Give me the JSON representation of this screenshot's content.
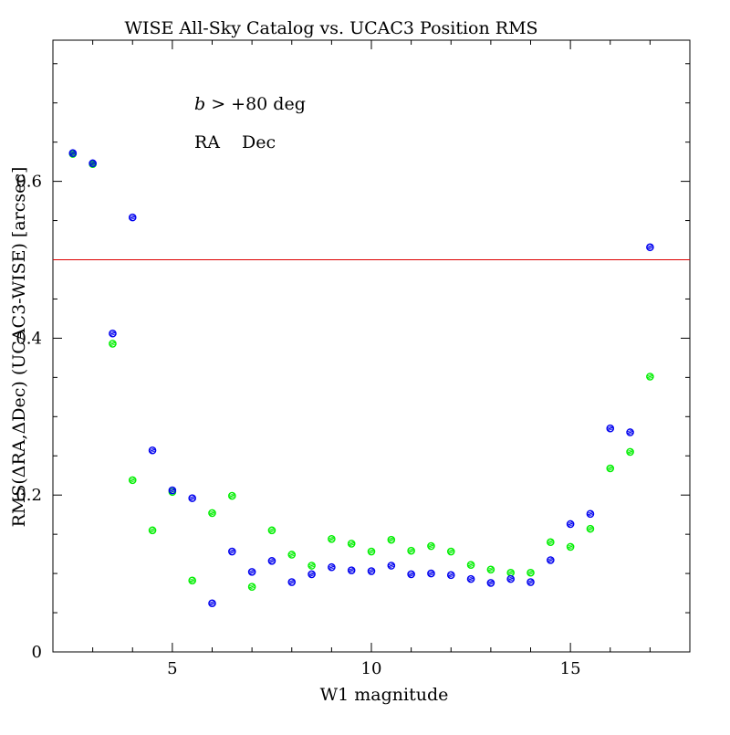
{
  "chart_data": {
    "type": "scatter",
    "title": "WISE All-Sky Catalog vs. UCAC3 Position RMS",
    "xlabel": "W1 magnitude",
    "ylabel": "RMS(ΔRA,ΔDec) (UCAC3-WISE) [arcsec]",
    "xlim": [
      2.0,
      18.0
    ],
    "ylim": [
      0.0,
      0.78
    ],
    "x_ticks": [
      5,
      10,
      15
    ],
    "x_tick_labels": [
      "5",
      "10",
      "15"
    ],
    "y_ticks": [
      0,
      0.2,
      0.4,
      0.6
    ],
    "y_tick_labels": [
      "0",
      "0.2",
      "0.4",
      "0.6"
    ],
    "grid": false,
    "annotation": {
      "italic_part": "b",
      "rest": " > +80 deg"
    },
    "legend_placement": "top-left",
    "reference_line": {
      "y": 0.5,
      "color": "#dd0000"
    },
    "series": [
      {
        "name": "RA",
        "color": "#00ee00",
        "x": [
          2.5,
          3.0,
          3.5,
          4.0,
          4.5,
          5.0,
          5.5,
          6.0,
          6.5,
          7.0,
          7.5,
          8.0,
          8.5,
          9.0,
          9.5,
          10.0,
          10.5,
          11.0,
          11.5,
          12.0,
          12.5,
          13.0,
          13.5,
          14.0,
          14.5,
          15.0,
          15.5,
          16.0,
          16.5,
          17.0
        ],
        "values": [
          0.635,
          0.622,
          0.393,
          0.219,
          0.155,
          0.204,
          0.091,
          0.177,
          0.199,
          0.083,
          0.155,
          0.124,
          0.11,
          0.144,
          0.138,
          0.128,
          0.143,
          0.129,
          0.135,
          0.128,
          0.111,
          0.105,
          0.101,
          0.101,
          0.14,
          0.134,
          0.157,
          0.234,
          0.255,
          0.351
        ]
      },
      {
        "name": "Dec",
        "color": "#0000ee",
        "x": [
          2.5,
          3.0,
          3.5,
          4.0,
          4.5,
          5.0,
          5.5,
          6.0,
          6.5,
          7.0,
          7.5,
          8.0,
          8.5,
          9.0,
          9.5,
          10.0,
          10.5,
          11.0,
          11.5,
          12.0,
          12.5,
          13.0,
          13.5,
          14.0,
          14.5,
          15.0,
          15.5,
          16.0,
          16.5,
          17.0
        ],
        "values": [
          0.636,
          0.623,
          0.406,
          0.554,
          0.257,
          0.206,
          0.196,
          0.062,
          0.128,
          0.102,
          0.116,
          0.089,
          0.099,
          0.108,
          0.104,
          0.103,
          0.11,
          0.099,
          0.1,
          0.098,
          0.093,
          0.088,
          0.093,
          0.089,
          0.117,
          0.163,
          0.176,
          0.285,
          0.28,
          0.516
        ]
      }
    ]
  }
}
